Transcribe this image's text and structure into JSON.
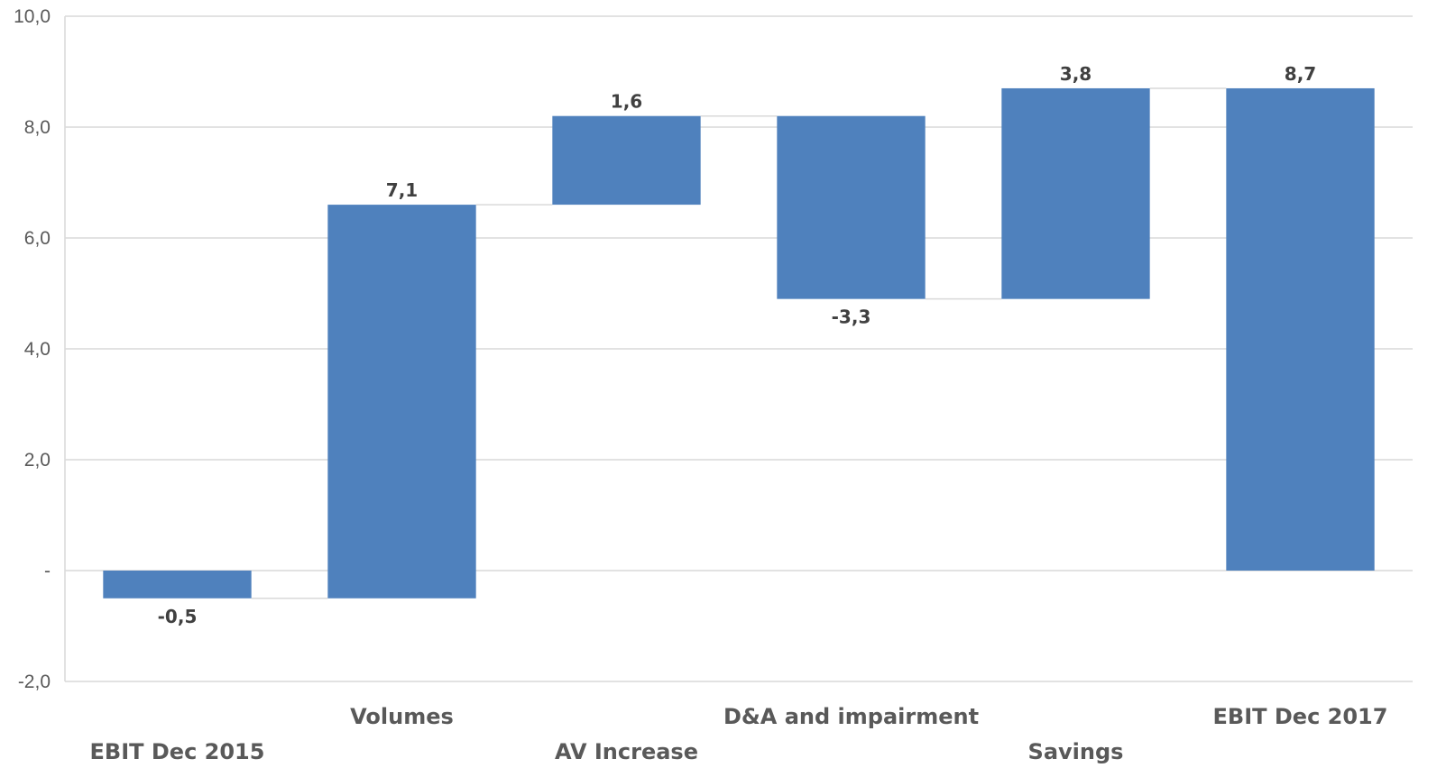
{
  "chart_data": {
    "type": "waterfall",
    "categories": [
      "EBIT Dec 2015",
      "Volumes",
      "AV Increase",
      "D&A and impairment",
      "Savings",
      "EBIT Dec 2017"
    ],
    "values": [
      -0.5,
      7.1,
      1.6,
      -3.3,
      3.8,
      8.7
    ],
    "value_labels": [
      "-0,5",
      "7,1",
      "1,6",
      "-3,3",
      "3,8",
      "8,7"
    ],
    "bar_kinds": [
      "total",
      "delta",
      "delta",
      "delta",
      "delta",
      "total"
    ],
    "ylim": [
      -2.0,
      10.0
    ],
    "yticks": [
      -2,
      0,
      2,
      4,
      6,
      8,
      10
    ],
    "ytick_labels": [
      "-2,0",
      "-",
      "2,0",
      "4,0",
      "6,0",
      "8,0",
      "10,0"
    ],
    "grid": true,
    "connectors": true,
    "legend": "none",
    "colors": {
      "bar": "#4f81bd",
      "grid": "#d9d9d9",
      "connector": "#d9d9d9"
    }
  }
}
